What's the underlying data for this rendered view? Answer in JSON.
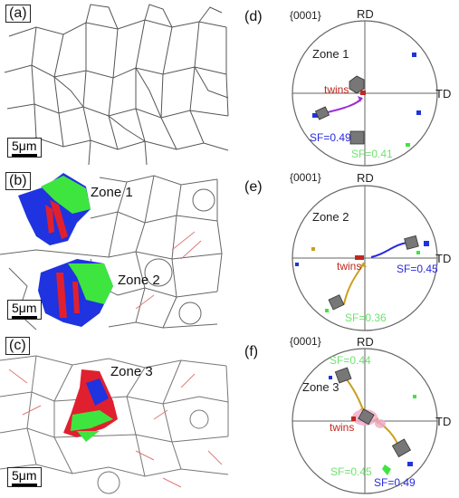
{
  "figure": {
    "scale_bar_label": "5μm",
    "maps": [
      {
        "id": "a",
        "label": "(a)",
        "zones": []
      },
      {
        "id": "b",
        "label": "(b)",
        "zones": [
          "Zone 1",
          "Zone 2"
        ]
      },
      {
        "id": "c",
        "label": "(c)",
        "zones": [
          "Zone 3"
        ]
      }
    ],
    "pole_figures": [
      {
        "id": "d",
        "label": "(d)",
        "plane": "{0001}",
        "rd": "RD",
        "td": "TD",
        "zone": "Zone 1",
        "twins": "twins",
        "sf_labels": [
          {
            "text": "SF=0.49",
            "color": "#2a2adf"
          },
          {
            "text": "SF=0.41",
            "color": "#6fe36f"
          }
        ]
      },
      {
        "id": "e",
        "label": "(e)",
        "plane": "{0001}",
        "rd": "RD",
        "td": "TD",
        "zone": "Zone 2",
        "twins": "twins",
        "sf_labels": [
          {
            "text": "SF=0.45",
            "color": "#2a2adf"
          },
          {
            "text": "SF=0.36",
            "color": "#6fe36f"
          }
        ]
      },
      {
        "id": "f",
        "label": "(f)",
        "plane": "{0001}",
        "rd": "RD",
        "td": "TD",
        "zone": "Zone 3",
        "twins": "twins",
        "sf_labels": [
          {
            "text": "SF=0.44",
            "color": "#6fe36f"
          },
          {
            "text": "SF=0.45",
            "color": "#6fe36f"
          },
          {
            "text": "SF=0.49",
            "color": "#2a2adf"
          }
        ]
      }
    ],
    "colors": {
      "grain_boundary": "#555555",
      "twin_boundary": "#e07a7a",
      "grain_blue": "#1f33e0",
      "grain_green": "#3fe53f",
      "grain_red": "#e0202f",
      "twins_label": "#c0281e"
    }
  }
}
